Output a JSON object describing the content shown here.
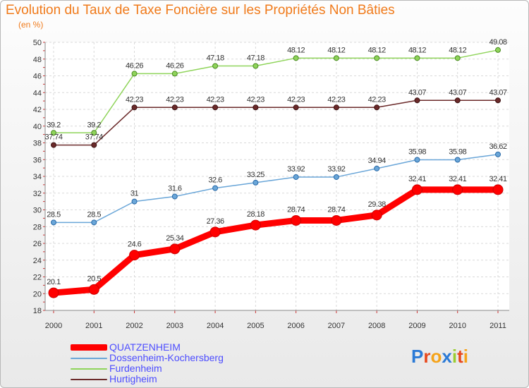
{
  "title": "Evolution du Taux de Taxe Foncière sur les Propriétés Non Bâties",
  "unit_label": "(en %)",
  "logo": {
    "letters": [
      "P",
      "r",
      "o",
      "x",
      "i",
      "t",
      "i"
    ],
    "colors": [
      "#2b7ad6",
      "#e8491d",
      "#f5a31a",
      "#2b7ad6",
      "#9acd32",
      "#e8491d",
      "#f5a31a"
    ]
  },
  "chart_data": {
    "type": "line",
    "title": "Evolution du Taux de Taxe Foncière sur les Propriétés Non Bâties",
    "ylabel": "(en %)",
    "xlabel": "",
    "x": [
      "2000",
      "2001",
      "2002",
      "2003",
      "2004",
      "2005",
      "2006",
      "2007",
      "2008",
      "2009",
      "2010",
      "2011"
    ],
    "yticks": [
      18,
      20,
      22,
      24,
      26,
      28,
      30,
      32,
      34,
      36,
      38,
      40,
      42,
      44,
      46,
      48,
      50
    ],
    "ylim": [
      18,
      50
    ],
    "grid": true,
    "series": [
      {
        "name": "Furdenheim",
        "color": "#8fd45a",
        "edge": "#4a8a22",
        "values": [
          39.2,
          39.2,
          46.26,
          46.26,
          47.18,
          47.18,
          48.12,
          48.12,
          48.12,
          48.12,
          48.12,
          49.08
        ],
        "labels": [
          "39.2",
          "39.2",
          "46.26",
          "46.26",
          "47.18",
          "47.18",
          "48.12",
          "48.12",
          "48.12",
          "48.12",
          "48.12",
          "49.08"
        ],
        "bold": false
      },
      {
        "name": "Hurtigheim",
        "color": "#6b2a2a",
        "edge": "#3a1010",
        "values": [
          37.74,
          37.74,
          42.23,
          42.23,
          42.23,
          42.23,
          42.23,
          42.23,
          42.23,
          43.07,
          43.07,
          43.07
        ],
        "labels": [
          "37.74",
          "37.74",
          "42.23",
          "42.23",
          "42.23",
          "42.23",
          "42.23",
          "42.23",
          "42.23",
          "43.07",
          "43.07",
          "43.07"
        ],
        "bold": false
      },
      {
        "name": "Dossenheim-Kochersberg",
        "color": "#6aa6d8",
        "edge": "#2a6aa8",
        "values": [
          28.5,
          28.5,
          31,
          31.6,
          32.6,
          33.25,
          33.92,
          33.92,
          34.94,
          35.98,
          35.98,
          36.62
        ],
        "labels": [
          "28.5",
          "28.5",
          "31",
          "31.6",
          "32.6",
          "33.25",
          "33.92",
          "33.92",
          "34.94",
          "35.98",
          "35.98",
          "36.62"
        ],
        "bold": false
      },
      {
        "name": "QUATZENHEIM",
        "color": "#ff0000",
        "edge": "#cc0000",
        "values": [
          20.1,
          20.5,
          24.6,
          25.34,
          27.36,
          28.18,
          28.74,
          28.74,
          29.38,
          32.41,
          32.41,
          32.41
        ],
        "labels": [
          "20.1",
          "20.5",
          "24.6",
          "25.34",
          "27.36",
          "28.18",
          "28.74",
          "28.74",
          "29.38",
          "32.41",
          "32.41",
          "32.41"
        ],
        "bold": true
      }
    ],
    "legend": [
      "QUATZENHEIM",
      "Dossenheim-Kochersberg",
      "Furdenheim",
      "Hurtigheim"
    ],
    "legend_position": "bottom-left"
  }
}
